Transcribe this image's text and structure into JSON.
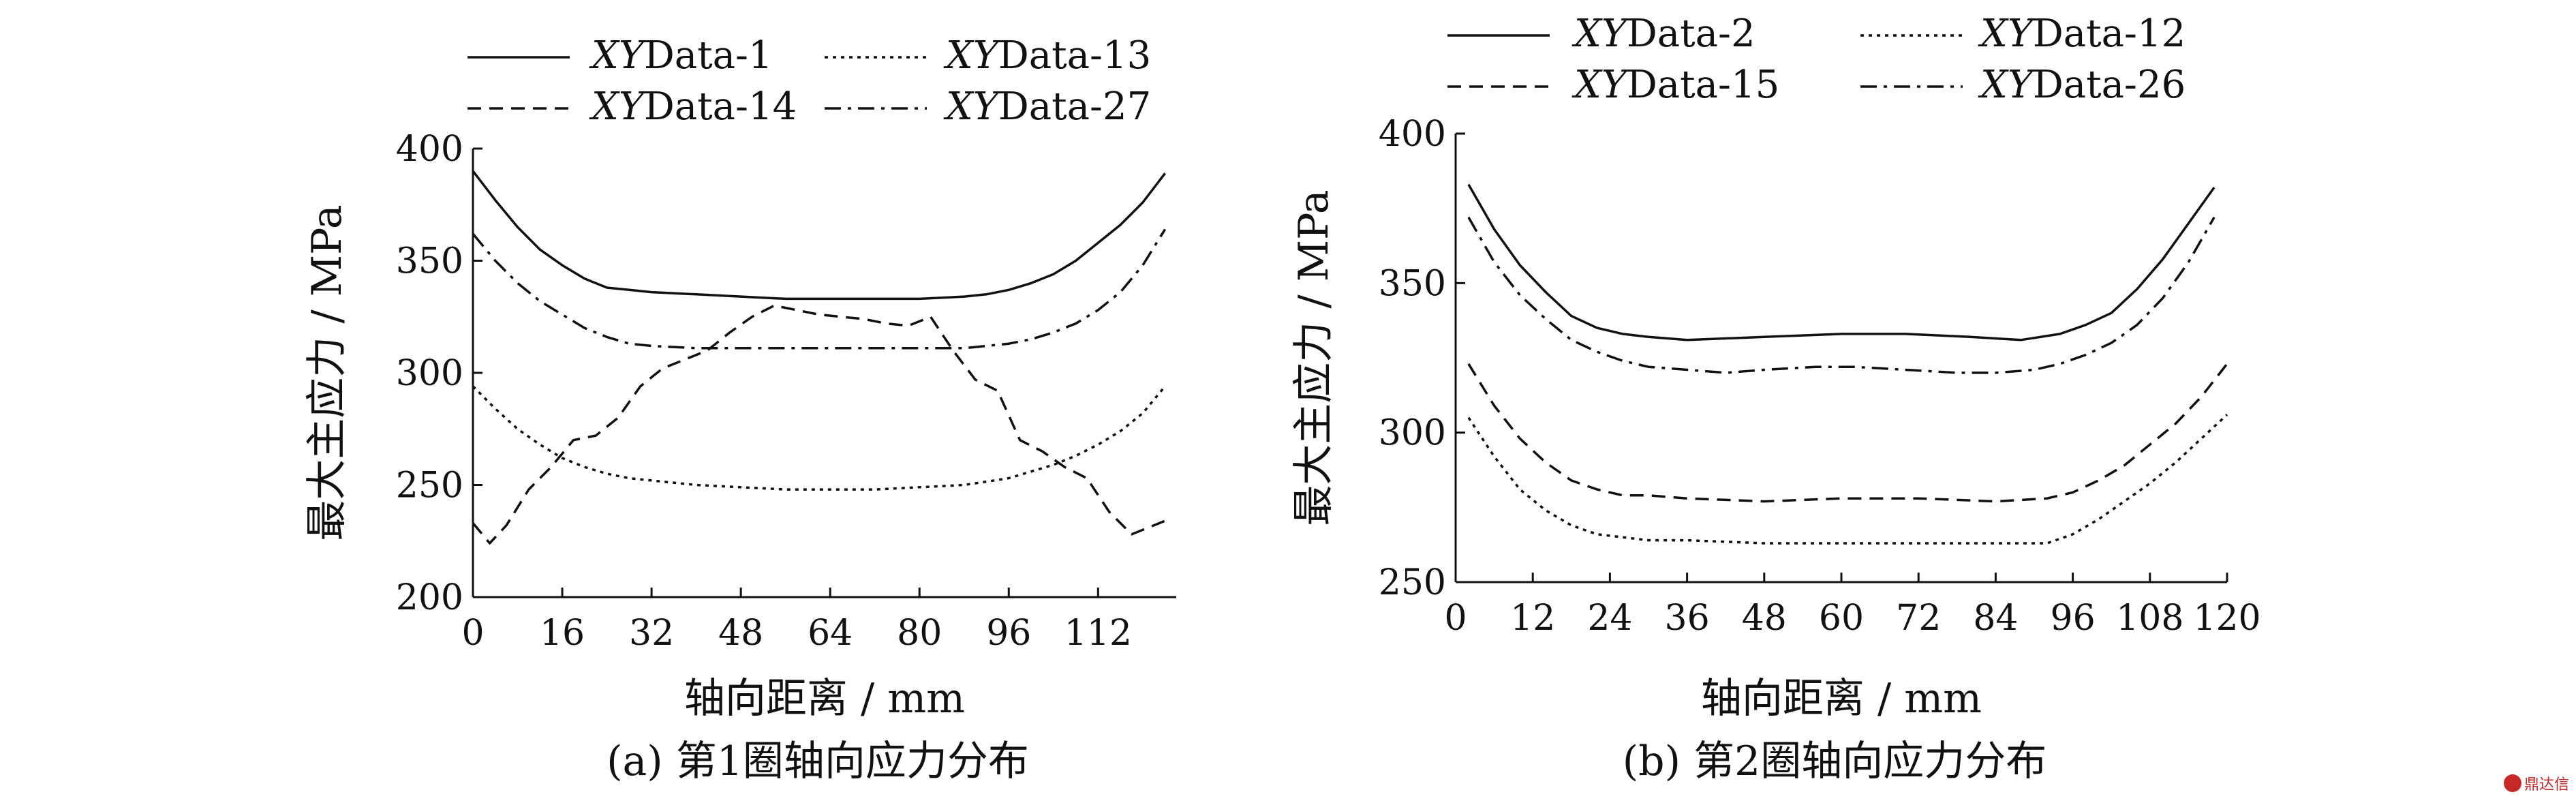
{
  "chart_data": [
    {
      "type": "line",
      "caption": "(a) 第1圈轴向应力分布",
      "xlabel": "轴向距离 / mm",
      "ylabel": "最大主应力 / MPa",
      "xlim": [
        0,
        126
      ],
      "ylim": [
        200,
        400
      ],
      "xticks": [
        0,
        16,
        32,
        48,
        64,
        80,
        96,
        112
      ],
      "yticks": [
        200,
        250,
        300,
        350,
        400
      ],
      "legend_position": "top",
      "series": [
        {
          "name": "XYData-1",
          "style": "solid",
          "x": [
            0,
            4,
            8,
            12,
            16,
            20,
            24,
            28,
            32,
            40,
            48,
            56,
            64,
            72,
            80,
            88,
            92,
            96,
            100,
            104,
            108,
            112,
            116,
            120,
            124
          ],
          "y": [
            390,
            377,
            365,
            355,
            348,
            342,
            338,
            337,
            336,
            335,
            334,
            333,
            333,
            333,
            333,
            334,
            335,
            337,
            340,
            344,
            350,
            358,
            366,
            376,
            389
          ]
        },
        {
          "name": "XYData-13",
          "style": "dotted",
          "x": [
            0,
            4,
            8,
            12,
            16,
            20,
            24,
            28,
            32,
            40,
            48,
            56,
            64,
            72,
            80,
            88,
            96,
            104,
            108,
            112,
            116,
            120,
            124
          ],
          "y": [
            294,
            284,
            275,
            268,
            262,
            258,
            255,
            253,
            252,
            250,
            249,
            248,
            248,
            248,
            249,
            250,
            253,
            259,
            263,
            268,
            274,
            282,
            294
          ]
        },
        {
          "name": "XYData-14",
          "style": "dashed",
          "x": [
            0,
            3,
            6,
            10,
            14,
            18,
            22,
            26,
            30,
            34,
            38,
            42,
            46,
            50,
            54,
            58,
            62,
            66,
            70,
            74,
            78,
            82,
            86,
            90,
            94,
            98,
            102,
            106,
            110,
            114,
            118,
            124
          ],
          "y": [
            233,
            224,
            232,
            248,
            258,
            270,
            272,
            280,
            294,
            302,
            306,
            310,
            318,
            325,
            330,
            328,
            326,
            325,
            324,
            322,
            321,
            325,
            310,
            297,
            292,
            270,
            265,
            258,
            253,
            238,
            228,
            234
          ]
        },
        {
          "name": "XYData-27",
          "style": "dashdot",
          "x": [
            0,
            4,
            8,
            12,
            16,
            20,
            24,
            28,
            32,
            40,
            48,
            56,
            64,
            72,
            80,
            88,
            92,
            96,
            100,
            104,
            108,
            112,
            116,
            120,
            124
          ],
          "y": [
            362,
            350,
            340,
            332,
            326,
            320,
            316,
            313,
            312,
            311,
            311,
            311,
            311,
            311,
            311,
            311,
            312,
            313,
            315,
            318,
            322,
            328,
            336,
            348,
            364
          ]
        }
      ]
    },
    {
      "type": "line",
      "caption": "(b) 第2圈轴向应力分布",
      "xlabel": "轴向距离 / mm",
      "ylabel": "最大主应力 / MPa",
      "xlim": [
        0,
        120
      ],
      "ylim": [
        250,
        400
      ],
      "xticks": [
        0,
        12,
        24,
        36,
        48,
        60,
        72,
        84,
        96,
        108,
        120
      ],
      "yticks": [
        250,
        300,
        350,
        400
      ],
      "legend_position": "top",
      "series": [
        {
          "name": "XYData-2",
          "style": "solid",
          "x": [
            2,
            6,
            10,
            14,
            18,
            22,
            26,
            30,
            36,
            48,
            60,
            70,
            80,
            88,
            94,
            98,
            102,
            106,
            110,
            114,
            118
          ],
          "y": [
            383,
            368,
            356,
            347,
            339,
            335,
            333,
            332,
            331,
            332,
            333,
            333,
            332,
            331,
            333,
            336,
            340,
            348,
            358,
            370,
            382
          ]
        },
        {
          "name": "XYData-12",
          "style": "dotted",
          "x": [
            2,
            6,
            10,
            14,
            18,
            22,
            26,
            30,
            36,
            48,
            60,
            72,
            84,
            92,
            96,
            100,
            104,
            108,
            112,
            116,
            120
          ],
          "y": [
            305,
            292,
            281,
            274,
            269,
            266,
            265,
            264,
            264,
            263,
            263,
            263,
            263,
            263,
            266,
            271,
            277,
            283,
            290,
            298,
            306
          ]
        },
        {
          "name": "XYData-15",
          "style": "dashed",
          "x": [
            2,
            6,
            10,
            14,
            18,
            22,
            26,
            30,
            36,
            48,
            60,
            72,
            84,
            92,
            96,
            100,
            104,
            108,
            112,
            116,
            120
          ],
          "y": [
            323,
            309,
            298,
            290,
            284,
            281,
            279,
            279,
            278,
            277,
            278,
            278,
            277,
            278,
            280,
            284,
            289,
            296,
            303,
            312,
            323
          ]
        },
        {
          "name": "XYData-26",
          "style": "dashdot",
          "x": [
            2,
            6,
            10,
            14,
            18,
            22,
            26,
            30,
            36,
            42,
            48,
            56,
            62,
            70,
            78,
            84,
            90,
            94,
            98,
            102,
            106,
            110,
            114,
            118
          ],
          "y": [
            372,
            357,
            346,
            338,
            331,
            327,
            324,
            322,
            321,
            320,
            321,
            322,
            322,
            321,
            320,
            320,
            321,
            323,
            326,
            330,
            336,
            345,
            357,
            372
          ]
        }
      ]
    }
  ],
  "watermark": {
    "text": "鼎达信"
  }
}
